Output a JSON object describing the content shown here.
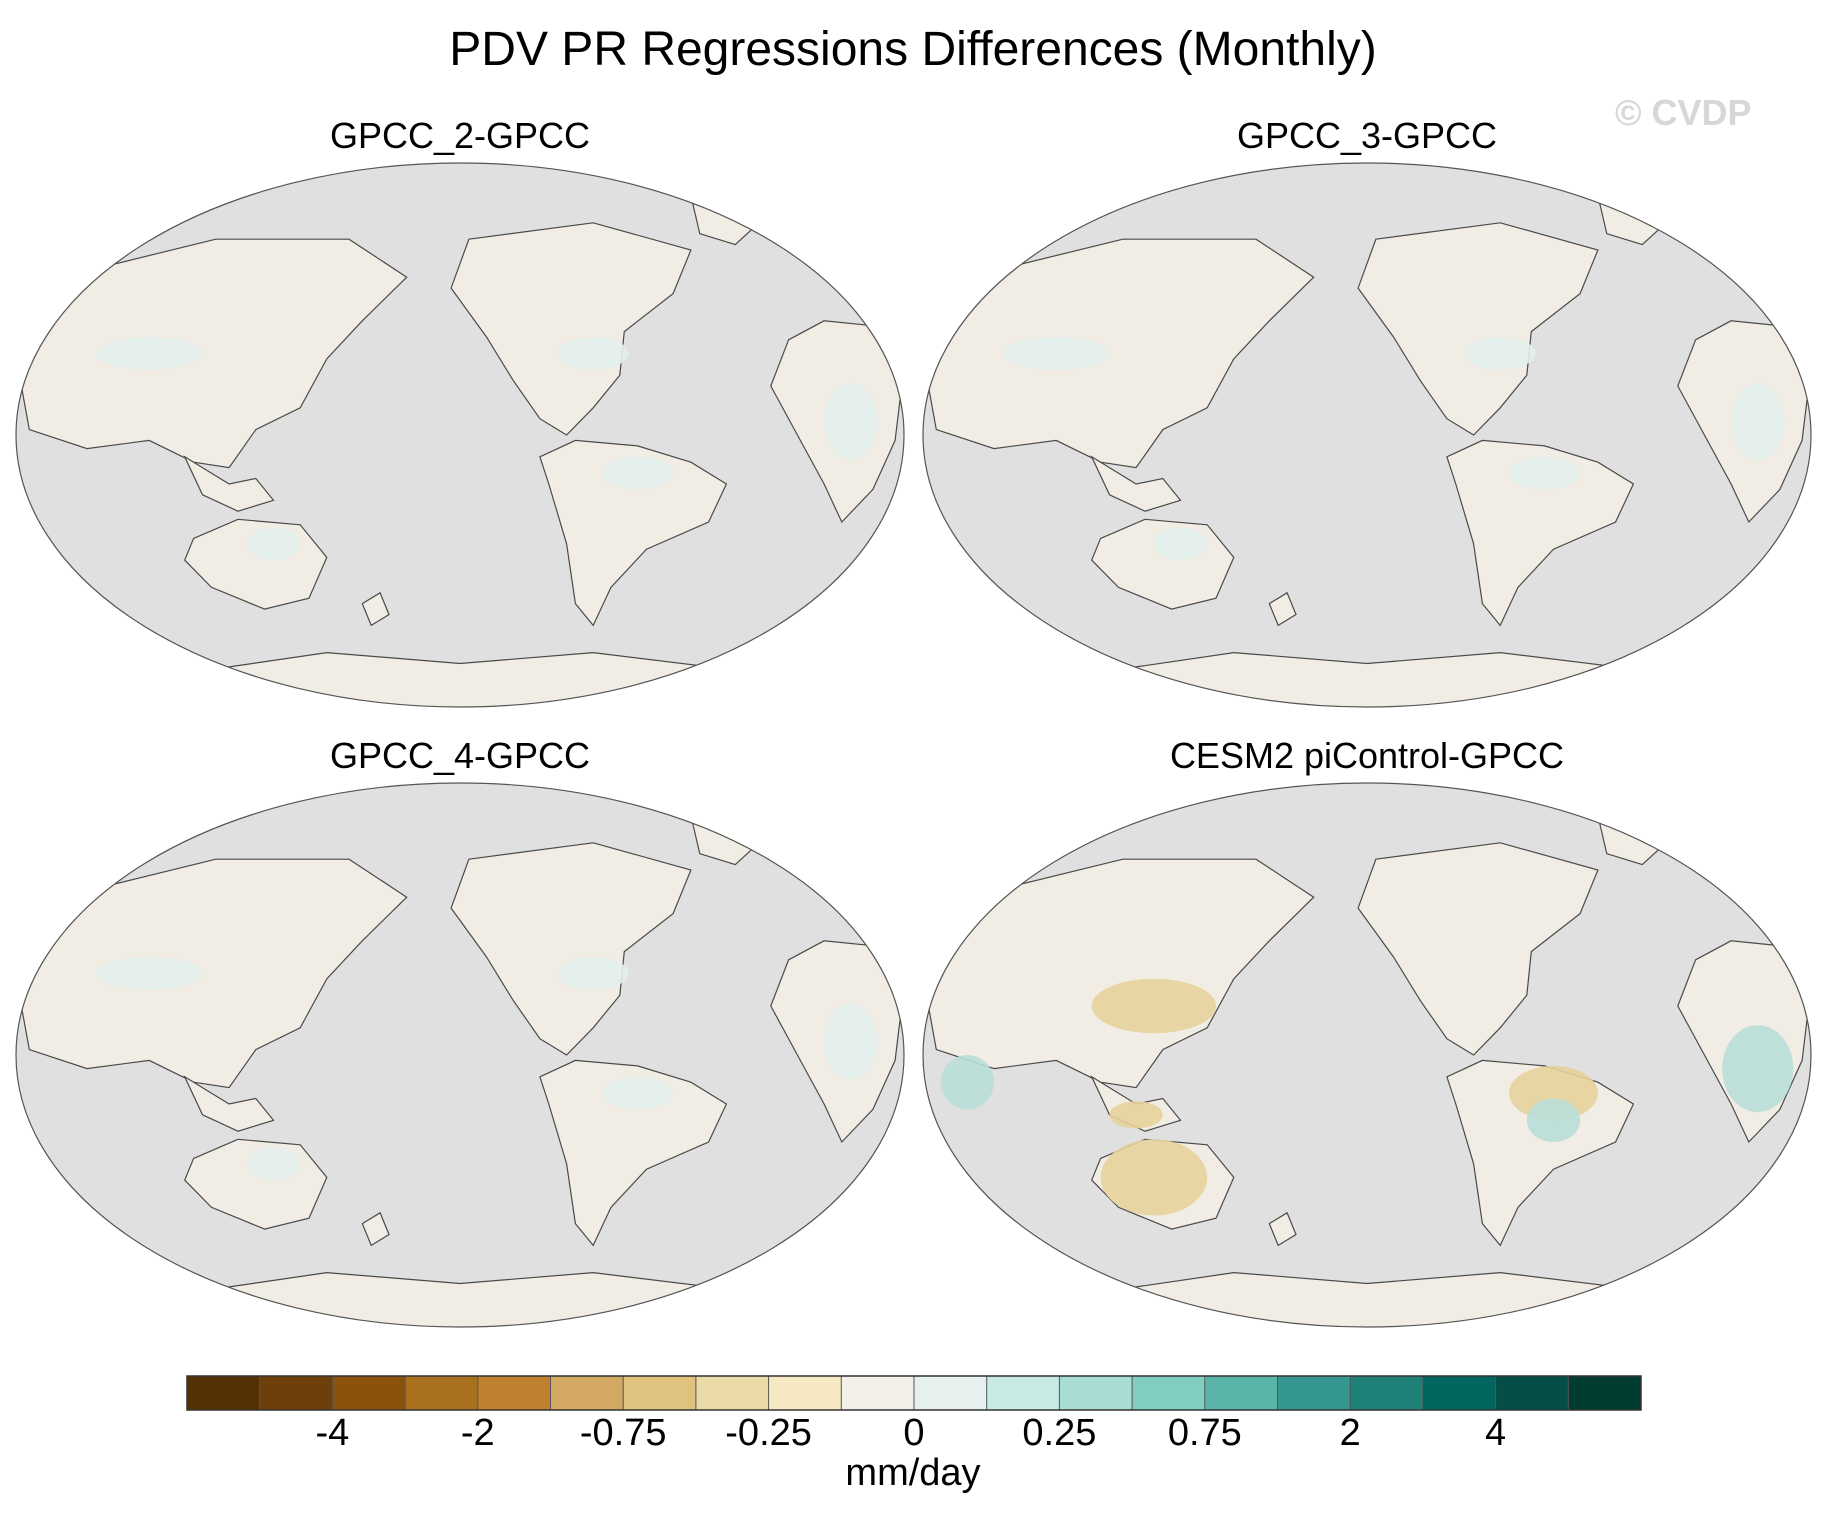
{
  "figure": {
    "title": "PDV PR Regressions Differences (Monthly)",
    "watermark": "© CVDP",
    "colors": {
      "ocean": "#e0e0e0",
      "map_outline": "#555555",
      "coast": "#4a4a4a"
    }
  },
  "panels": [
    {
      "title": "GPCC_2-GPCC",
      "land_color": "#f1ede4",
      "accent": "#e3eeec",
      "accent_b": "#e3eeec"
    },
    {
      "title": "GPCC_3-GPCC",
      "land_color": "#f1ede4",
      "accent": "#e3eeec",
      "accent_b": "#e3eeec"
    },
    {
      "title": "GPCC_4-GPCC",
      "land_color": "#f1ede4",
      "accent": "#e3eeec",
      "accent_b": "#e3eeec"
    },
    {
      "title": "CESM2 piControl-GPCC",
      "land_color": "#f1ede4",
      "accent": "#e6d29b",
      "accent_b": "#b9ded8"
    }
  ],
  "colorbar": {
    "units": "mm/day",
    "labels": [
      "-4",
      "-2",
      "-0.75",
      "-0.25",
      "0",
      "0.25",
      "0.75",
      "2",
      "4"
    ],
    "colors": [
      "#543005",
      "#6e3f0b",
      "#8c510a",
      "#a8701f",
      "#bf812d",
      "#d2a863",
      "#dfc27d",
      "#eadaa9",
      "#f6e8c3",
      "#f3f0e9",
      "#e6f0ee",
      "#c7eae5",
      "#a8dcd4",
      "#80cdc1",
      "#5ab4a7",
      "#35978f",
      "#1f8178",
      "#01665e",
      "#034e46",
      "#003c30"
    ]
  }
}
